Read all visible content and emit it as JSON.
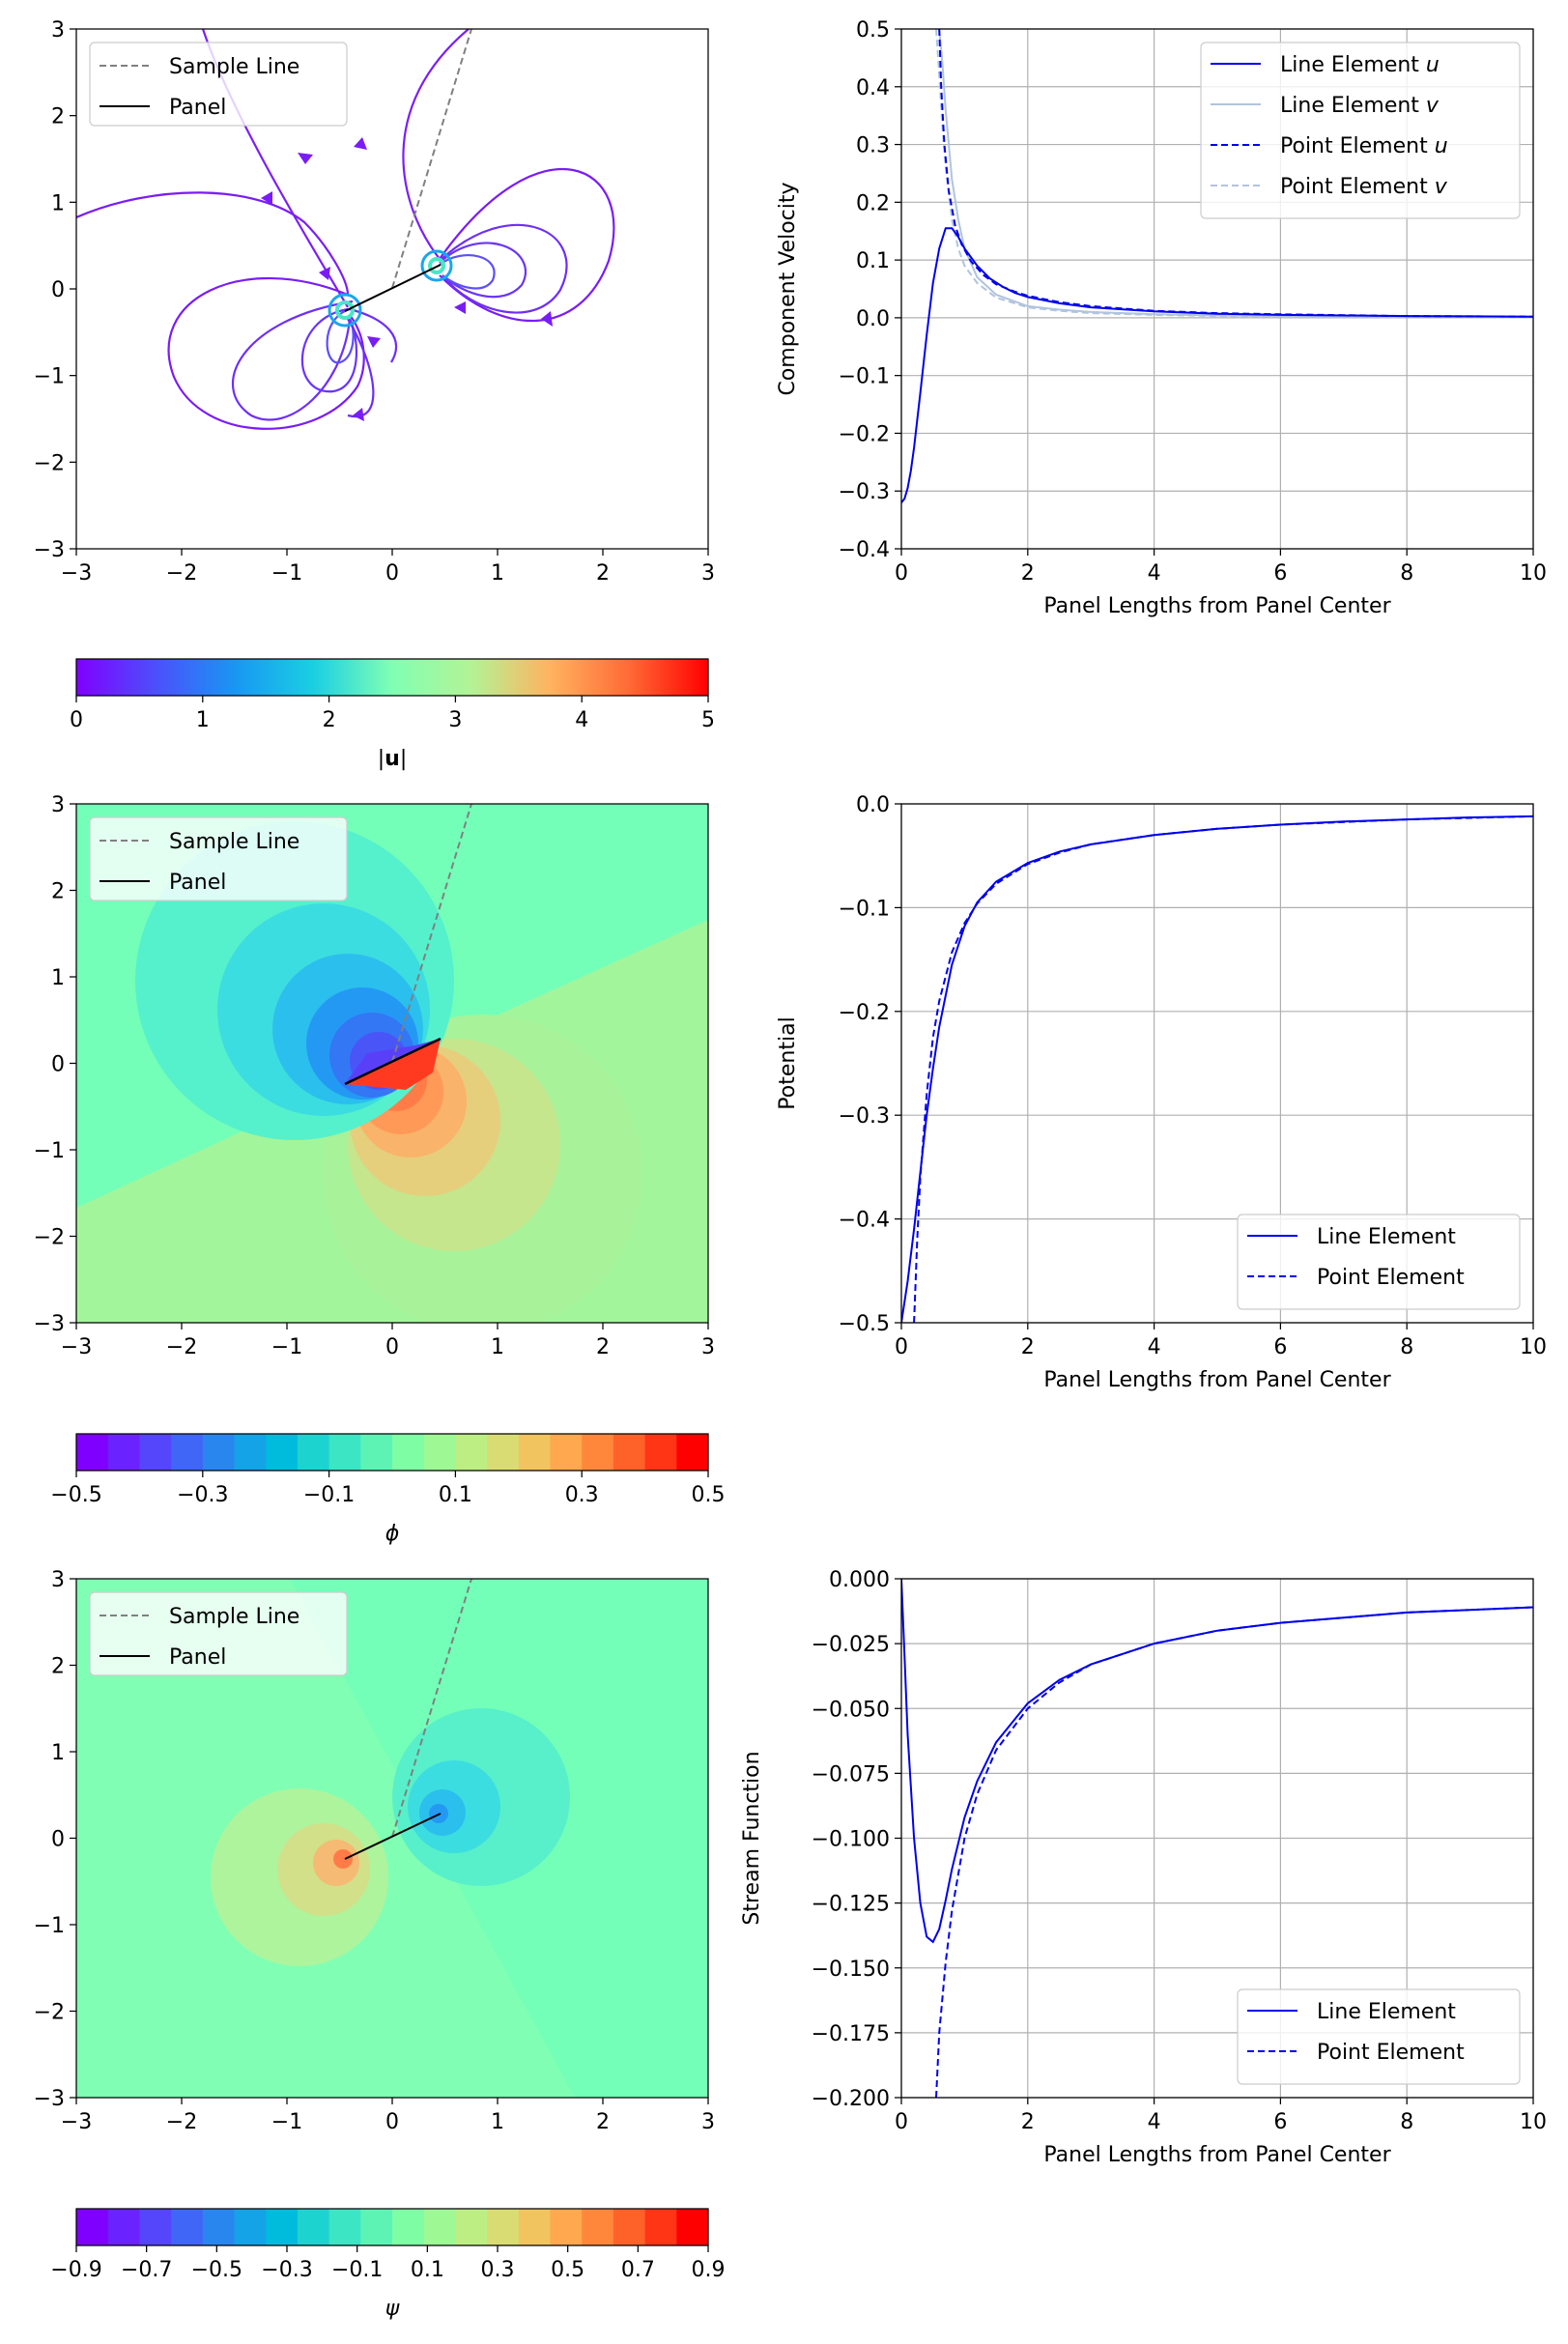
{
  "chart_data": [
    {
      "id": "velocity-field",
      "type": "streamplot",
      "xlim": [
        -3,
        3
      ],
      "ylim": [
        -3,
        3
      ],
      "xticks": [
        "−3",
        "−2",
        "−1",
        "0",
        "1",
        "2",
        "3"
      ],
      "yticks": [
        "−3",
        "−2",
        "−1",
        "0",
        "1",
        "2",
        "3"
      ],
      "legend": {
        "location": "upper-left",
        "entries": [
          "Sample Line",
          "Panel"
        ]
      },
      "panel": {
        "x": [
          -0.45,
          0.45
        ],
        "y": [
          -0.22,
          0.22
        ]
      },
      "sample_line": {
        "x": [
          0,
          0.75
        ],
        "y": [
          0,
          3
        ]
      },
      "colorbar": {
        "label": "|u|",
        "range": [
          0,
          5
        ],
        "ticks": [
          "0",
          "1",
          "2",
          "3",
          "4",
          "5"
        ],
        "colormap": "rainbow",
        "continuous": true
      }
    },
    {
      "id": "velocity-line",
      "type": "line",
      "xlabel": "Panel Lengths from Panel Center",
      "ylabel": "Component Velocity",
      "xlim": [
        0,
        10
      ],
      "ylim": [
        -0.4,
        0.5
      ],
      "xticks": [
        "0",
        "2",
        "4",
        "6",
        "8",
        "10"
      ],
      "yticks": [
        "−0.4",
        "−0.3",
        "−0.2",
        "−0.1",
        "0.0",
        "0.1",
        "0.2",
        "0.3",
        "0.4",
        "0.5"
      ],
      "grid": true,
      "legend": {
        "location": "upper-right"
      },
      "series": [
        {
          "name": "Line Element u",
          "color": "#0000ee",
          "dash": "solid",
          "x": [
            0,
            0.05,
            0.1,
            0.15,
            0.2,
            0.3,
            0.4,
            0.5,
            0.6,
            0.7,
            0.8,
            0.9,
            1.0,
            1.2,
            1.4,
            1.6,
            1.8,
            2,
            2.5,
            3,
            4,
            5,
            6,
            7,
            8,
            9,
            10
          ],
          "y": [
            -0.32,
            -0.313,
            -0.295,
            -0.265,
            -0.225,
            -0.13,
            -0.03,
            0.06,
            0.12,
            0.155,
            0.155,
            0.14,
            0.12,
            0.09,
            0.068,
            0.054,
            0.043,
            0.036,
            0.025,
            0.018,
            0.011,
            0.007,
            0.005,
            0.004,
            0.003,
            0.0025,
            0.002
          ]
        },
        {
          "name": "Line Element v",
          "color": "#b0c4de",
          "dash": "solid",
          "x": [
            0.6,
            0.65,
            0.7,
            0.8,
            0.9,
            1.0,
            1.2,
            1.5,
            2,
            2.5,
            3,
            4,
            5,
            6,
            8,
            10
          ],
          "y": [
            0.5,
            0.44,
            0.36,
            0.24,
            0.17,
            0.12,
            0.07,
            0.04,
            0.02,
            0.014,
            0.01,
            0.006,
            0.004,
            0.003,
            0.002,
            0.001
          ]
        },
        {
          "name": "Point Element u",
          "color": "#0000ee",
          "dash": "dashed",
          "x": [
            0.6,
            0.63,
            0.68,
            0.75,
            0.85,
            0.95,
            1.1,
            1.3,
            1.5,
            1.8,
            2,
            2.5,
            3,
            4,
            5,
            6,
            8,
            10
          ],
          "y": [
            0.5,
            0.4,
            0.3,
            0.22,
            0.16,
            0.128,
            0.098,
            0.074,
            0.058,
            0.045,
            0.038,
            0.027,
            0.02,
            0.012,
            0.008,
            0.006,
            0.003,
            0.002
          ]
        },
        {
          "name": "Point Element v",
          "color": "#b0c4de",
          "dash": "dashed",
          "x": [
            0.55,
            0.6,
            0.65,
            0.7,
            0.8,
            0.9,
            1.0,
            1.2,
            1.5,
            2,
            2.5,
            3,
            4,
            5,
            6,
            8,
            10
          ],
          "y": [
            0.5,
            0.42,
            0.33,
            0.26,
            0.17,
            0.12,
            0.09,
            0.06,
            0.035,
            0.018,
            0.012,
            0.008,
            0.005,
            0.003,
            0.002,
            0.001,
            0.001
          ]
        }
      ]
    },
    {
      "id": "potential-field",
      "type": "contourf",
      "xlim": [
        -3,
        3
      ],
      "ylim": [
        -3,
        3
      ],
      "xticks": [
        "−3",
        "−2",
        "−1",
        "0",
        "1",
        "2",
        "3"
      ],
      "yticks": [
        "−3",
        "−2",
        "−1",
        "0",
        "1",
        "2",
        "3"
      ],
      "legend": {
        "location": "upper-left",
        "entries": [
          "Sample Line",
          "Panel"
        ]
      },
      "panel": {
        "x": [
          -0.45,
          0.45
        ],
        "y": [
          -0.22,
          0.22
        ]
      },
      "sample_line": {
        "x": [
          0,
          0.75
        ],
        "y": [
          0,
          3
        ]
      },
      "colorbar": {
        "label": "ϕ",
        "range": [
          -0.5,
          0.5
        ],
        "levels": 20,
        "ticks": [
          "−0.5",
          "−0.3",
          "−0.1",
          "0.1",
          "0.3",
          "0.5"
        ],
        "colormap": "rainbow",
        "continuous": false
      }
    },
    {
      "id": "potential-line",
      "type": "line",
      "xlabel": "Panel Lengths from Panel Center",
      "ylabel": "Potential",
      "xlim": [
        0,
        10
      ],
      "ylim": [
        -0.5,
        0.0
      ],
      "xticks": [
        "0",
        "2",
        "4",
        "6",
        "8",
        "10"
      ],
      "yticks": [
        "−0.5",
        "−0.4",
        "−0.3",
        "−0.2",
        "−0.1",
        "0.0"
      ],
      "grid": true,
      "legend": {
        "location": "lower-right"
      },
      "series": [
        {
          "name": "Line Element",
          "color": "#0000ee",
          "dash": "solid",
          "x": [
            0,
            0.1,
            0.2,
            0.3,
            0.4,
            0.5,
            0.6,
            0.8,
            1.0,
            1.2,
            1.5,
            2,
            2.5,
            3,
            4,
            5,
            6,
            7,
            8,
            9,
            10
          ],
          "y": [
            -0.5,
            -0.46,
            -0.41,
            -0.355,
            -0.3,
            -0.255,
            -0.215,
            -0.155,
            -0.118,
            -0.095,
            -0.075,
            -0.057,
            -0.046,
            -0.039,
            -0.03,
            -0.024,
            -0.02,
            -0.017,
            -0.015,
            -0.013,
            -0.012
          ]
        },
        {
          "name": "Point Element",
          "color": "#0000ee",
          "dash": "dashed",
          "x": [
            0.2,
            0.25,
            0.3,
            0.4,
            0.5,
            0.6,
            0.8,
            1.0,
            1.2,
            1.5,
            2,
            2.5,
            3,
            4,
            5,
            6,
            8,
            10
          ],
          "y": [
            -0.5,
            -0.42,
            -0.36,
            -0.28,
            -0.225,
            -0.19,
            -0.143,
            -0.115,
            -0.096,
            -0.077,
            -0.058,
            -0.047,
            -0.039,
            -0.03,
            -0.024,
            -0.02,
            -0.015,
            -0.012
          ]
        }
      ]
    },
    {
      "id": "stream-field",
      "type": "contourf",
      "xlim": [
        -3,
        3
      ],
      "ylim": [
        -3,
        3
      ],
      "xticks": [
        "−3",
        "−2",
        "−1",
        "0",
        "1",
        "2",
        "3"
      ],
      "yticks": [
        "−3",
        "−2",
        "−1",
        "0",
        "1",
        "2",
        "3"
      ],
      "legend": {
        "location": "upper-left",
        "entries": [
          "Sample Line",
          "Panel"
        ]
      },
      "panel": {
        "x": [
          -0.45,
          0.45
        ],
        "y": [
          -0.22,
          0.22
        ]
      },
      "sample_line": {
        "x": [
          0,
          0.75
        ],
        "y": [
          0,
          3
        ]
      },
      "colorbar": {
        "label": "ψ",
        "range": [
          -0.9,
          0.9
        ],
        "levels": 20,
        "ticks": [
          "−0.9",
          "−0.7",
          "−0.5",
          "−0.3",
          "−0.1",
          "0.1",
          "0.3",
          "0.5",
          "0.7",
          "0.9"
        ],
        "colormap": "rainbow",
        "continuous": false
      }
    },
    {
      "id": "stream-line",
      "type": "line",
      "xlabel": "Panel Lengths from Panel Center",
      "ylabel": "Stream Function",
      "xlim": [
        0,
        10
      ],
      "ylim": [
        -0.2,
        0.0
      ],
      "xticks": [
        "0",
        "2",
        "4",
        "6",
        "8",
        "10"
      ],
      "yticks": [
        "−0.200",
        "−0.175",
        "−0.150",
        "−0.125",
        "−0.100",
        "−0.075",
        "−0.050",
        "−0.025",
        "0.000"
      ],
      "grid": true,
      "legend": {
        "location": "lower-right"
      },
      "series": [
        {
          "name": "Line Element",
          "color": "#0000ee",
          "dash": "solid",
          "x": [
            0,
            0.05,
            0.1,
            0.2,
            0.3,
            0.4,
            0.5,
            0.6,
            0.7,
            0.8,
            1.0,
            1.2,
            1.5,
            2,
            2.5,
            3,
            4,
            5,
            6,
            7,
            8,
            9,
            10
          ],
          "y": [
            0,
            -0.03,
            -0.06,
            -0.1,
            -0.125,
            -0.138,
            -0.14,
            -0.135,
            -0.124,
            -0.112,
            -0.092,
            -0.078,
            -0.063,
            -0.048,
            -0.039,
            -0.033,
            -0.025,
            -0.02,
            -0.017,
            -0.015,
            -0.013,
            -0.012,
            -0.011
          ]
        },
        {
          "name": "Point Element",
          "color": "#0000ee",
          "dash": "dashed",
          "x": [
            0.55,
            0.6,
            0.7,
            0.8,
            1.0,
            1.2,
            1.5,
            2,
            2.5,
            3,
            4,
            5,
            6,
            8,
            10
          ],
          "y": [
            -0.2,
            -0.175,
            -0.148,
            -0.128,
            -0.1,
            -0.083,
            -0.066,
            -0.05,
            -0.04,
            -0.033,
            -0.025,
            -0.02,
            -0.017,
            -0.013,
            -0.011
          ]
        }
      ]
    }
  ]
}
